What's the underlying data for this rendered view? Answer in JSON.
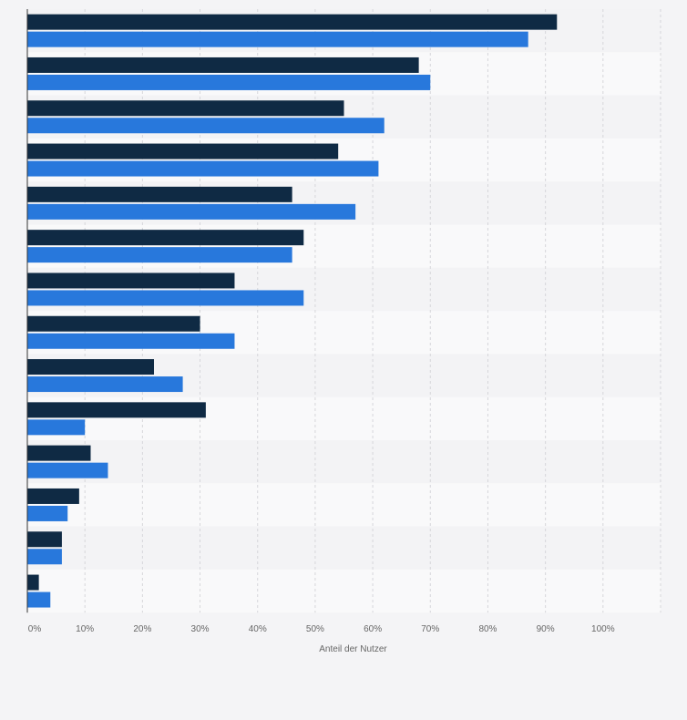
{
  "chart_data": {
    "type": "bar",
    "orientation": "horizontal",
    "categories": [
      "",
      "",
      "",
      "",
      "",
      "",
      "",
      "",
      "",
      "",
      "",
      "",
      "",
      ""
    ],
    "series": [
      {
        "color": "#0f2a44",
        "values": [
          92,
          68,
          55,
          54,
          46,
          48,
          36,
          30,
          22,
          31,
          11,
          9,
          6,
          2
        ]
      },
      {
        "color": "#2878dc",
        "values": [
          87,
          70,
          62,
          61,
          57,
          46,
          48,
          36,
          27,
          10,
          14,
          7,
          6,
          4
        ]
      }
    ],
    "xlabel": "Anteil der Nutzer",
    "ylabel": "",
    "xlim": [
      0,
      110
    ],
    "x_ticks": [
      0,
      10,
      20,
      30,
      40,
      50,
      60,
      70,
      80,
      90,
      100
    ],
    "x_tick_labels": [
      "0%",
      "10%",
      "20%",
      "30%",
      "40%",
      "50%",
      "60%",
      "70%",
      "80%",
      "90%",
      "100%"
    ],
    "grid": true,
    "legend": "none"
  }
}
